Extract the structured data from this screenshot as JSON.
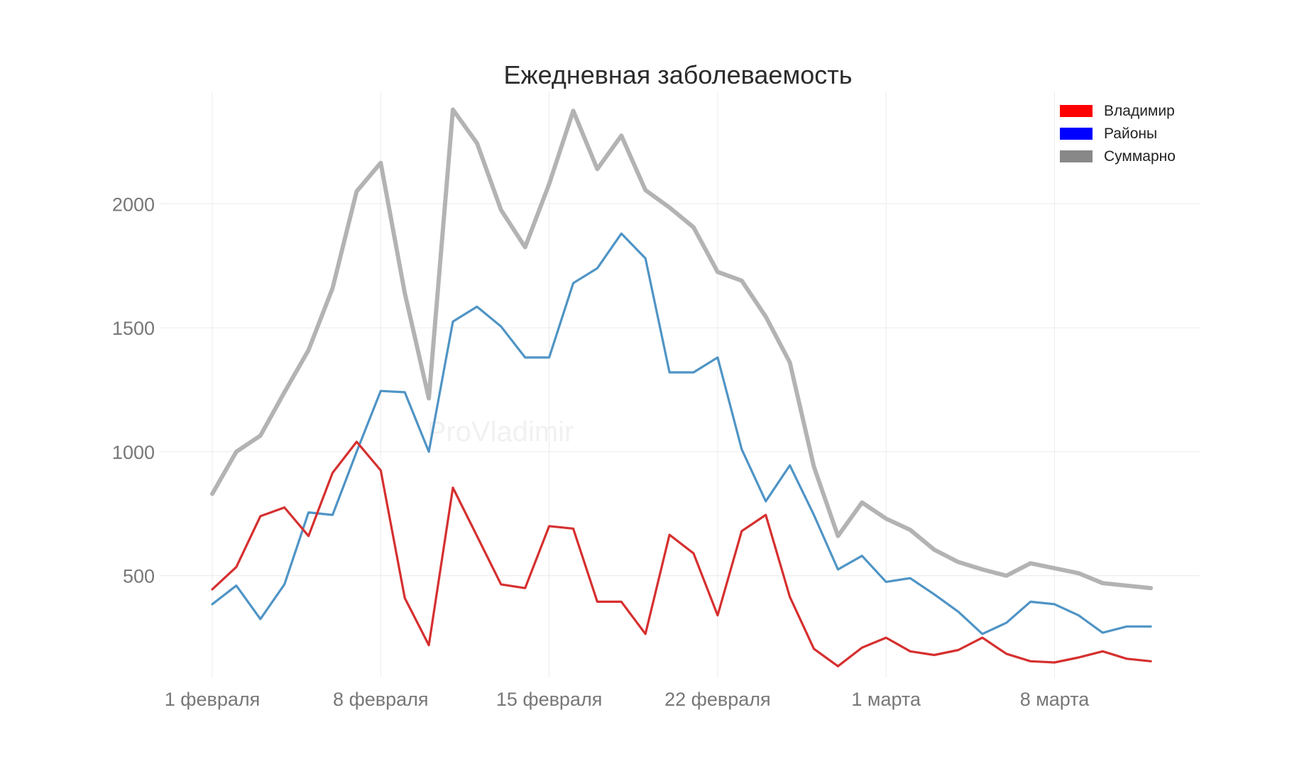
{
  "chart_data": {
    "type": "line",
    "title": "Ежедневная заболеваемость",
    "xlabel": "",
    "ylabel": "",
    "watermark": "ProVladimir",
    "x_range": [
      0,
      41
    ],
    "ylim": [
      90,
      2450
    ],
    "y_ticks": [
      {
        "value": 500,
        "label": "500"
      },
      {
        "value": 1000,
        "label": "1000"
      },
      {
        "value": 1500,
        "label": "1500"
      },
      {
        "value": 2000,
        "label": "2000"
      }
    ],
    "x_ticks": [
      {
        "value": 0,
        "label": "1 февраля"
      },
      {
        "value": 7,
        "label": "8 февраля"
      },
      {
        "value": 14,
        "label": "15 февраля"
      },
      {
        "value": 21,
        "label": "22 февраля"
      },
      {
        "value": 28,
        "label": "1 марта"
      },
      {
        "value": 35,
        "label": "8 марта"
      }
    ],
    "grid": true,
    "legend_position": "top-right",
    "x": [
      0,
      1,
      2,
      3,
      4,
      5,
      6,
      7,
      8,
      9,
      10,
      11,
      12,
      13,
      14,
      15,
      16,
      17,
      18,
      19,
      20,
      21,
      22,
      23,
      24,
      25,
      26,
      27,
      28,
      29,
      30,
      31,
      32,
      33,
      34,
      35,
      36,
      37,
      38,
      39
    ],
    "series": [
      {
        "name": "Суммарно",
        "color": "#b3b3b3",
        "legend_color": "#888888",
        "values": [
          830,
          1000,
          1065,
          1240,
          1410,
          1660,
          2050,
          2165,
          1640,
          1215,
          2380,
          2245,
          1975,
          1825,
          2080,
          2375,
          2140,
          2275,
          2055,
          1985,
          1905,
          1725,
          1690,
          1545,
          1360,
          940,
          660,
          795,
          730,
          685,
          605,
          555,
          525,
          500,
          550,
          530,
          510,
          470,
          460,
          450
        ]
      },
      {
        "name": "Районы",
        "color": "#4f94c5",
        "legend_color": "#0000ff",
        "values": [
          385,
          460,
          325,
          465,
          755,
          745,
          1000,
          1245,
          1240,
          1000,
          1525,
          1585,
          1505,
          1380,
          1380,
          1680,
          1740,
          1880,
          1780,
          1320,
          1320,
          1380,
          1010,
          800,
          945,
          745,
          525,
          580,
          475,
          490,
          425,
          355,
          265,
          310,
          395,
          385,
          340,
          270,
          295,
          295
        ]
      },
      {
        "name": "Владимир",
        "color": "#d62f2f",
        "legend_color": "#ff0000",
        "values": [
          445,
          535,
          740,
          775,
          660,
          915,
          1040,
          925,
          410,
          220,
          855,
          660,
          465,
          450,
          700,
          690,
          395,
          395,
          265,
          665,
          590,
          340,
          680,
          745,
          415,
          205,
          135,
          210,
          250,
          195,
          180,
          200,
          250,
          185,
          155,
          150,
          170,
          195,
          165,
          155
        ]
      }
    ],
    "legend": [
      {
        "label": "Владимир",
        "color": "#ff0000"
      },
      {
        "label": "Районы",
        "color": "#0000ff"
      },
      {
        "label": "Суммарно",
        "color": "#888888"
      }
    ]
  }
}
